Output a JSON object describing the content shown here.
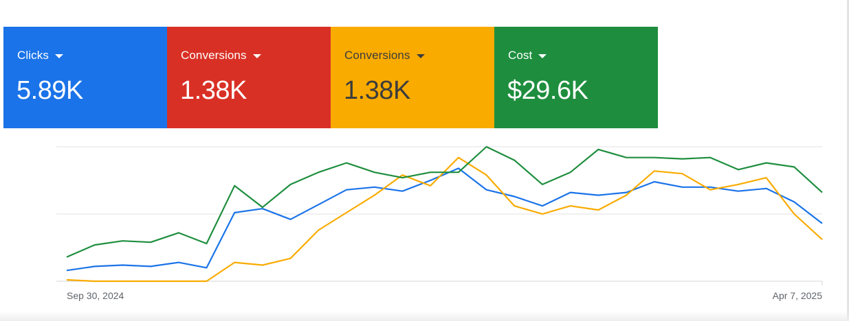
{
  "cards": [
    {
      "label": "Clicks",
      "value": "5.89K",
      "bg": "#1a73e8",
      "fg": "#ffffff"
    },
    {
      "label": "Conversions",
      "value": "1.38K",
      "bg": "#d93025",
      "fg": "#ffffff"
    },
    {
      "label": "Conversions",
      "value": "1.38K",
      "bg": "#f9ab00",
      "fg": "#3c3c3c"
    },
    {
      "label": "Cost",
      "value": "$29.6K",
      "bg": "#1e8e3e",
      "fg": "#ffffff"
    }
  ],
  "icons": {
    "card_dropdown": "caret-down-icon"
  },
  "chart_data": {
    "type": "line",
    "x_start": "Sep 30, 2024",
    "x_end": "Apr 7, 2025",
    "categories": [
      "Sep 30, 2024",
      "",
      "",
      "",
      "",
      "",
      "",
      "",
      "",
      "",
      "",
      "",
      "",
      "",
      "",
      "",
      "",
      "",
      "",
      "",
      "",
      "",
      "",
      "",
      "",
      "",
      "",
      "Apr 7, 2025"
    ],
    "ylim": [
      0,
      1
    ],
    "grid": true,
    "series": [
      {
        "name": "Clicks",
        "color": "#1a73e8",
        "values": [
          0.08,
          0.11,
          0.12,
          0.11,
          0.14,
          0.1,
          0.51,
          0.54,
          0.46,
          0.57,
          0.68,
          0.7,
          0.67,
          0.75,
          0.84,
          0.68,
          0.63,
          0.56,
          0.66,
          0.64,
          0.66,
          0.74,
          0.7,
          0.7,
          0.67,
          0.69,
          0.59,
          0.43
        ]
      },
      {
        "name": "Conversions",
        "color": "#f9ab00",
        "values": [
          0.01,
          0.0,
          0.0,
          0.0,
          0.0,
          0.0,
          0.14,
          0.12,
          0.17,
          0.38,
          0.51,
          0.64,
          0.79,
          0.71,
          0.92,
          0.79,
          0.56,
          0.5,
          0.56,
          0.53,
          0.64,
          0.82,
          0.8,
          0.68,
          0.72,
          0.77,
          0.5,
          0.31
        ]
      },
      {
        "name": "Cost",
        "color": "#1e8e3e",
        "values": [
          0.18,
          0.27,
          0.3,
          0.29,
          0.36,
          0.28,
          0.71,
          0.55,
          0.72,
          0.81,
          0.88,
          0.81,
          0.77,
          0.81,
          0.81,
          1.0,
          0.9,
          0.72,
          0.81,
          0.98,
          0.92,
          0.92,
          0.91,
          0.92,
          0.83,
          0.88,
          0.85,
          0.66
        ]
      }
    ]
  }
}
